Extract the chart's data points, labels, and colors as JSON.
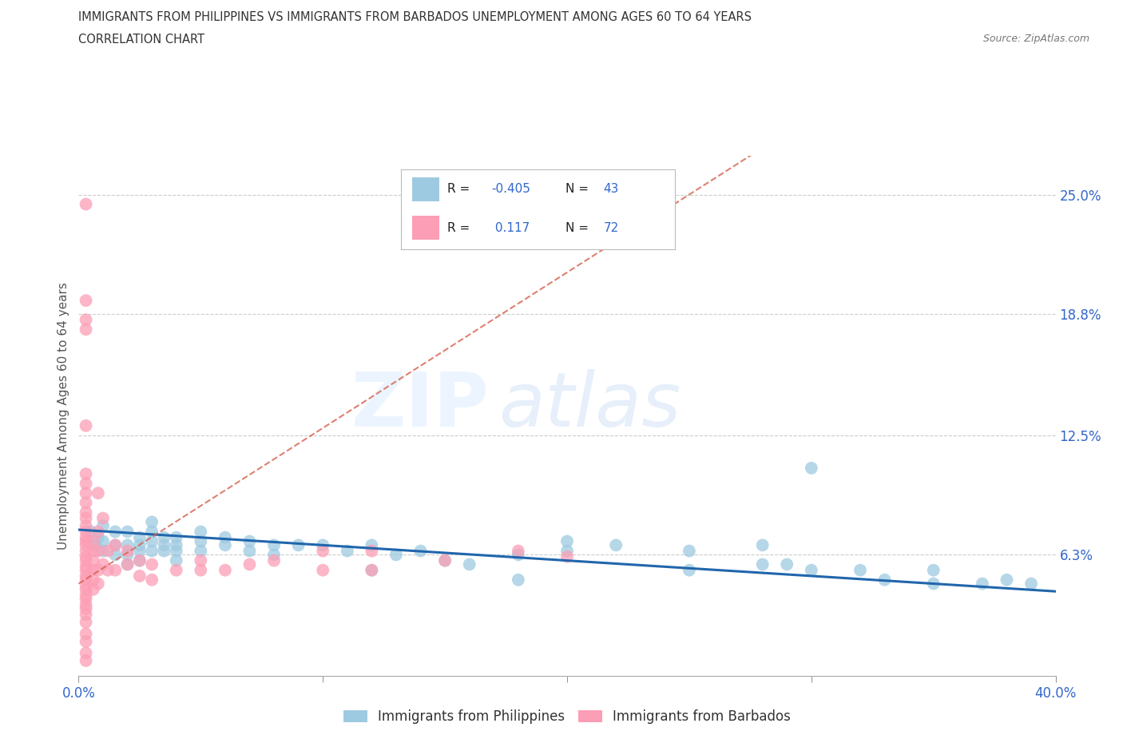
{
  "title_line1": "IMMIGRANTS FROM PHILIPPINES VS IMMIGRANTS FROM BARBADOS UNEMPLOYMENT AMONG AGES 60 TO 64 YEARS",
  "title_line2": "CORRELATION CHART",
  "source": "Source: ZipAtlas.com",
  "ylabel": "Unemployment Among Ages 60 to 64 years",
  "xlim": [
    0.0,
    0.4
  ],
  "ylim": [
    0.0,
    0.27
  ],
  "ytick_labels_right": [
    "6.3%",
    "12.5%",
    "18.8%",
    "25.0%"
  ],
  "ytick_vals_right": [
    0.063,
    0.125,
    0.188,
    0.25
  ],
  "watermark_zip": "ZIP",
  "watermark_atlas": "atlas",
  "philippines_color": "#9ecae1",
  "barbados_color": "#fc9eb5",
  "philippines_line_color": "#2166ac",
  "barbados_line_color": "#d6604d",
  "philippines_points": [
    [
      0.005,
      0.075
    ],
    [
      0.007,
      0.068
    ],
    [
      0.008,
      0.072
    ],
    [
      0.01,
      0.078
    ],
    [
      0.01,
      0.065
    ],
    [
      0.01,
      0.07
    ],
    [
      0.015,
      0.075
    ],
    [
      0.015,
      0.068
    ],
    [
      0.015,
      0.063
    ],
    [
      0.02,
      0.075
    ],
    [
      0.02,
      0.068
    ],
    [
      0.02,
      0.063
    ],
    [
      0.02,
      0.058
    ],
    [
      0.025,
      0.072
    ],
    [
      0.025,
      0.068
    ],
    [
      0.025,
      0.065
    ],
    [
      0.025,
      0.06
    ],
    [
      0.03,
      0.08
    ],
    [
      0.03,
      0.075
    ],
    [
      0.03,
      0.07
    ],
    [
      0.03,
      0.065
    ],
    [
      0.035,
      0.072
    ],
    [
      0.035,
      0.068
    ],
    [
      0.035,
      0.065
    ],
    [
      0.04,
      0.072
    ],
    [
      0.04,
      0.068
    ],
    [
      0.04,
      0.065
    ],
    [
      0.04,
      0.06
    ],
    [
      0.05,
      0.075
    ],
    [
      0.05,
      0.07
    ],
    [
      0.05,
      0.065
    ],
    [
      0.06,
      0.072
    ],
    [
      0.06,
      0.068
    ],
    [
      0.07,
      0.07
    ],
    [
      0.07,
      0.065
    ],
    [
      0.08,
      0.068
    ],
    [
      0.08,
      0.063
    ],
    [
      0.09,
      0.068
    ],
    [
      0.1,
      0.068
    ],
    [
      0.11,
      0.065
    ],
    [
      0.12,
      0.068
    ],
    [
      0.12,
      0.055
    ],
    [
      0.13,
      0.063
    ],
    [
      0.14,
      0.065
    ],
    [
      0.15,
      0.06
    ],
    [
      0.16,
      0.058
    ],
    [
      0.18,
      0.063
    ],
    [
      0.18,
      0.05
    ],
    [
      0.2,
      0.07
    ],
    [
      0.2,
      0.065
    ],
    [
      0.22,
      0.068
    ],
    [
      0.25,
      0.065
    ],
    [
      0.25,
      0.055
    ],
    [
      0.28,
      0.058
    ],
    [
      0.3,
      0.108
    ],
    [
      0.32,
      0.055
    ],
    [
      0.33,
      0.05
    ],
    [
      0.35,
      0.055
    ],
    [
      0.35,
      0.048
    ],
    [
      0.37,
      0.048
    ],
    [
      0.38,
      0.05
    ],
    [
      0.39,
      0.048
    ],
    [
      0.28,
      0.068
    ],
    [
      0.29,
      0.058
    ],
    [
      0.3,
      0.055
    ]
  ],
  "barbados_points": [
    [
      0.003,
      0.245
    ],
    [
      0.003,
      0.195
    ],
    [
      0.003,
      0.185
    ],
    [
      0.003,
      0.18
    ],
    [
      0.003,
      0.13
    ],
    [
      0.003,
      0.105
    ],
    [
      0.003,
      0.1
    ],
    [
      0.003,
      0.095
    ],
    [
      0.003,
      0.09
    ],
    [
      0.003,
      0.085
    ],
    [
      0.003,
      0.082
    ],
    [
      0.003,
      0.078
    ],
    [
      0.003,
      0.075
    ],
    [
      0.003,
      0.072
    ],
    [
      0.003,
      0.07
    ],
    [
      0.003,
      0.068
    ],
    [
      0.003,
      0.065
    ],
    [
      0.003,
      0.062
    ],
    [
      0.003,
      0.06
    ],
    [
      0.003,
      0.057
    ],
    [
      0.003,
      0.055
    ],
    [
      0.003,
      0.052
    ],
    [
      0.003,
      0.05
    ],
    [
      0.003,
      0.047
    ],
    [
      0.003,
      0.045
    ],
    [
      0.003,
      0.042
    ],
    [
      0.003,
      0.04
    ],
    [
      0.003,
      0.037
    ],
    [
      0.003,
      0.035
    ],
    [
      0.003,
      0.032
    ],
    [
      0.003,
      0.028
    ],
    [
      0.003,
      0.022
    ],
    [
      0.003,
      0.018
    ],
    [
      0.006,
      0.07
    ],
    [
      0.006,
      0.065
    ],
    [
      0.006,
      0.06
    ],
    [
      0.006,
      0.055
    ],
    [
      0.006,
      0.05
    ],
    [
      0.006,
      0.045
    ],
    [
      0.008,
      0.095
    ],
    [
      0.008,
      0.075
    ],
    [
      0.008,
      0.065
    ],
    [
      0.008,
      0.055
    ],
    [
      0.008,
      0.048
    ],
    [
      0.01,
      0.082
    ],
    [
      0.01,
      0.058
    ],
    [
      0.012,
      0.065
    ],
    [
      0.012,
      0.055
    ],
    [
      0.015,
      0.068
    ],
    [
      0.015,
      0.055
    ],
    [
      0.02,
      0.065
    ],
    [
      0.02,
      0.058
    ],
    [
      0.025,
      0.06
    ],
    [
      0.025,
      0.052
    ],
    [
      0.03,
      0.058
    ],
    [
      0.03,
      0.05
    ],
    [
      0.04,
      0.055
    ],
    [
      0.05,
      0.06
    ],
    [
      0.05,
      0.055
    ],
    [
      0.06,
      0.055
    ],
    [
      0.07,
      0.058
    ],
    [
      0.08,
      0.06
    ],
    [
      0.1,
      0.065
    ],
    [
      0.1,
      0.055
    ],
    [
      0.12,
      0.065
    ],
    [
      0.12,
      0.055
    ],
    [
      0.15,
      0.06
    ],
    [
      0.18,
      0.065
    ],
    [
      0.2,
      0.062
    ],
    [
      0.003,
      0.012
    ],
    [
      0.003,
      0.008
    ]
  ]
}
